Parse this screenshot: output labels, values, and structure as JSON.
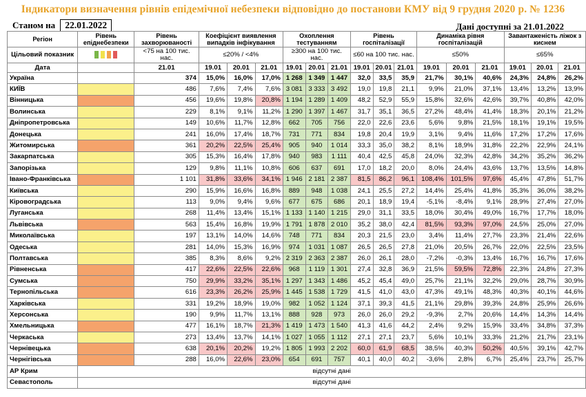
{
  "title": "Індикатори визначення рівнів епідемічної небезпеки відповідно до постанови КМУ від 9 грудня 2020 р. № 1236",
  "status_label": "Станом на",
  "status_date": "22.01.2022",
  "data_available_label": "Дані доступні за",
  "data_available_date": "21.01.2022",
  "headers": {
    "region": "Регіон",
    "level": "Рівень епіднебезпеки",
    "incidence": "Рівень захворюваності",
    "detection": "Коефіцієнт виявлення випадків інфікування",
    "testing": "Охоплення тестуванням",
    "hosp": "Рівень госпіталізації",
    "hosp_dyn": "Динаміка рівня госпіталізацій",
    "beds": "Завантаженість ліжок з киснем"
  },
  "target": {
    "label": "Цільовий показник",
    "incidence": "<75 на 100 тис. нас.",
    "detection": "≤20% / <4%",
    "testing": "≥300 на 100 тис. нас.",
    "hosp": "≤60 на 100 тис. нас.",
    "hosp_dyn": "≤50%",
    "beds": "≤65%"
  },
  "level_colors": [
    "#7ab648",
    "#f2e14c",
    "#f2a24c",
    "#e25a5a"
  ],
  "dates_label": "Дата",
  "dates": {
    "incidence": "21.01",
    "detection": [
      "19.01",
      "20.01",
      "21.01"
    ],
    "testing": [
      "19.01",
      "20.01",
      "21.01"
    ],
    "hosp": [
      "19.01",
      "20.01",
      "21.01"
    ],
    "hosp_dyn": [
      "19.01",
      "20.01",
      "21.01"
    ],
    "beds": [
      "19.01",
      "20.01",
      "21.01"
    ]
  },
  "ukraine": {
    "name": "Україна",
    "inc": "374",
    "det": [
      "15,0%",
      "16,0%",
      "17,0%"
    ],
    "test": [
      "1 268",
      "1 349",
      "1 447"
    ],
    "hosp": [
      "32,0",
      "33,5",
      "35,9"
    ],
    "dyn": [
      "21,7%",
      "30,1%",
      "40,6%"
    ],
    "beds": [
      "24,3%",
      "24,8%",
      "26,2%"
    ]
  },
  "regions": [
    {
      "name": "КИЇВ",
      "lvl": "yel",
      "inc": "486",
      "det": [
        "7,6%",
        "7,4%",
        "7,6%"
      ],
      "detc": [
        "",
        "",
        ""
      ],
      "test": [
        "3 081",
        "3 333",
        "3 492"
      ],
      "hosp": [
        "19,0",
        "19,8",
        "21,1"
      ],
      "hospc": [
        "",
        "",
        ""
      ],
      "dyn": [
        "9,9%",
        "21,0%",
        "37,1%"
      ],
      "dync": [
        "",
        "",
        ""
      ],
      "beds": [
        "13,4%",
        "13,2%",
        "13,9%"
      ]
    },
    {
      "name": "Вінницька",
      "lvl": "ora",
      "inc": "456",
      "det": [
        "19,6%",
        "19,8%",
        "20,8%"
      ],
      "detc": [
        "",
        "",
        "red"
      ],
      "test": [
        "1 194",
        "1 289",
        "1 409"
      ],
      "hosp": [
        "48,2",
        "52,9",
        "55,9"
      ],
      "hospc": [
        "",
        "",
        ""
      ],
      "dyn": [
        "15,8%",
        "32,6%",
        "42,6%"
      ],
      "dync": [
        "",
        "",
        ""
      ],
      "beds": [
        "39,7%",
        "40,8%",
        "42,0%"
      ]
    },
    {
      "name": "Волинська",
      "lvl": "yel",
      "inc": "229",
      "det": [
        "8,1%",
        "9,1%",
        "11,2%"
      ],
      "detc": [
        "",
        "",
        ""
      ],
      "test": [
        "1 290",
        "1 397",
        "1 467"
      ],
      "hosp": [
        "31,7",
        "35,1",
        "36,5"
      ],
      "hospc": [
        "",
        "",
        ""
      ],
      "dyn": [
        "27,2%",
        "48,4%",
        "41,4%"
      ],
      "dync": [
        "",
        "",
        ""
      ],
      "beds": [
        "18,3%",
        "20,1%",
        "21,2%"
      ]
    },
    {
      "name": "Дніпропетровська",
      "lvl": "yel",
      "inc": "149",
      "det": [
        "10,6%",
        "11,7%",
        "12,8%"
      ],
      "detc": [
        "",
        "",
        ""
      ],
      "test": [
        "662",
        "705",
        "756"
      ],
      "hosp": [
        "22,0",
        "22,6",
        "23,6"
      ],
      "hospc": [
        "",
        "",
        ""
      ],
      "dyn": [
        "5,6%",
        "9,8%",
        "21,5%"
      ],
      "dync": [
        "",
        "",
        ""
      ],
      "beds": [
        "18,1%",
        "19,1%",
        "19,5%"
      ]
    },
    {
      "name": "Донецька",
      "lvl": "yel",
      "inc": "241",
      "det": [
        "16,0%",
        "17,4%",
        "18,7%"
      ],
      "detc": [
        "",
        "",
        ""
      ],
      "test": [
        "731",
        "771",
        "834"
      ],
      "hosp": [
        "19,8",
        "20,4",
        "19,9"
      ],
      "hospc": [
        "",
        "",
        ""
      ],
      "dyn": [
        "3,1%",
        "9,4%",
        "11,6%"
      ],
      "dync": [
        "",
        "",
        ""
      ],
      "beds": [
        "17,2%",
        "17,2%",
        "17,6%"
      ]
    },
    {
      "name": "Житомирська",
      "lvl": "ora",
      "inc": "361",
      "det": [
        "20,2%",
        "22,5%",
        "25,4%"
      ],
      "detc": [
        "red",
        "red",
        "red"
      ],
      "test": [
        "905",
        "940",
        "1 014"
      ],
      "hosp": [
        "33,3",
        "35,0",
        "38,2"
      ],
      "hospc": [
        "",
        "",
        ""
      ],
      "dyn": [
        "8,1%",
        "18,9%",
        "31,8%"
      ],
      "dync": [
        "",
        "",
        ""
      ],
      "beds": [
        "22,2%",
        "22,9%",
        "24,1%"
      ]
    },
    {
      "name": "Закарпатська",
      "lvl": "yel",
      "inc": "305",
      "det": [
        "15,3%",
        "16,4%",
        "17,8%"
      ],
      "detc": [
        "",
        "",
        ""
      ],
      "test": [
        "940",
        "983",
        "1 111"
      ],
      "hosp": [
        "40,4",
        "42,5",
        "45,8"
      ],
      "hospc": [
        "",
        "",
        ""
      ],
      "dyn": [
        "24,0%",
        "32,3%",
        "42,8%"
      ],
      "dync": [
        "",
        "",
        ""
      ],
      "beds": [
        "34,2%",
        "35,2%",
        "36,2%"
      ]
    },
    {
      "name": "Запорізька",
      "lvl": "yel",
      "inc": "129",
      "det": [
        "9,8%",
        "11,1%",
        "10,8%"
      ],
      "detc": [
        "",
        "",
        ""
      ],
      "test": [
        "606",
        "637",
        "691"
      ],
      "hosp": [
        "17,0",
        "18,2",
        "20,0"
      ],
      "hospc": [
        "",
        "",
        ""
      ],
      "dyn": [
        "8,0%",
        "24,4%",
        "43,6%"
      ],
      "dync": [
        "",
        "",
        ""
      ],
      "beds": [
        "13,7%",
        "13,5%",
        "14,8%"
      ]
    },
    {
      "name": "Івано-Франківська",
      "lvl": "ora",
      "inc": "1 101",
      "det": [
        "31,8%",
        "33,6%",
        "34,1%"
      ],
      "detc": [
        "red",
        "red",
        "red"
      ],
      "test": [
        "1 946",
        "2 181",
        "2 387"
      ],
      "hosp": [
        "81,5",
        "86,2",
        "96,1"
      ],
      "hospc": [
        "red",
        "red",
        "red"
      ],
      "dyn": [
        "108,4%",
        "101,5%",
        "97,6%"
      ],
      "dync": [
        "red",
        "red",
        "red"
      ],
      "beds": [
        "45,4%",
        "47,8%",
        "51,7%"
      ]
    },
    {
      "name": "Київська",
      "lvl": "yel",
      "inc": "290",
      "det": [
        "15,9%",
        "16,6%",
        "16,8%"
      ],
      "detc": [
        "",
        "",
        ""
      ],
      "test": [
        "889",
        "948",
        "1 038"
      ],
      "hosp": [
        "24,1",
        "25,5",
        "27,2"
      ],
      "hospc": [
        "",
        "",
        ""
      ],
      "dyn": [
        "14,4%",
        "25,4%",
        "41,8%"
      ],
      "dync": [
        "",
        "",
        ""
      ],
      "beds": [
        "35,3%",
        "36,0%",
        "38,2%"
      ]
    },
    {
      "name": "Кіровоградська",
      "lvl": "yel",
      "inc": "113",
      "det": [
        "9,0%",
        "9,4%",
        "9,6%"
      ],
      "detc": [
        "",
        "",
        ""
      ],
      "test": [
        "677",
        "675",
        "686"
      ],
      "hosp": [
        "20,1",
        "18,9",
        "19,4"
      ],
      "hospc": [
        "",
        "",
        ""
      ],
      "dyn": [
        "-5,1%",
        "-8,4%",
        "9,1%"
      ],
      "dync": [
        "",
        "",
        ""
      ],
      "beds": [
        "28,9%",
        "27,4%",
        "27,0%"
      ]
    },
    {
      "name": "Луганська",
      "lvl": "yel",
      "inc": "268",
      "det": [
        "11,4%",
        "13,4%",
        "15,1%"
      ],
      "detc": [
        "",
        "",
        ""
      ],
      "test": [
        "1 133",
        "1 140",
        "1 215"
      ],
      "hosp": [
        "29,0",
        "31,1",
        "33,5"
      ],
      "hospc": [
        "",
        "",
        ""
      ],
      "dyn": [
        "18,0%",
        "30,4%",
        "49,0%"
      ],
      "dync": [
        "",
        "",
        ""
      ],
      "beds": [
        "16,7%",
        "17,7%",
        "18,0%"
      ]
    },
    {
      "name": "Львівська",
      "lvl": "ora",
      "inc": "563",
      "det": [
        "15,4%",
        "16,8%",
        "19,9%"
      ],
      "detc": [
        "",
        "",
        ""
      ],
      "test": [
        "1 791",
        "1 878",
        "2 010"
      ],
      "hosp": [
        "35,2",
        "38,0",
        "42,4"
      ],
      "hospc": [
        "",
        "",
        ""
      ],
      "dyn": [
        "81,5%",
        "93,3%",
        "97,0%"
      ],
      "dync": [
        "red",
        "red",
        "red"
      ],
      "beds": [
        "24,5%",
        "25,0%",
        "27,0%"
      ]
    },
    {
      "name": "Миколаївська",
      "lvl": "yel",
      "inc": "197",
      "det": [
        "13,1%",
        "14,0%",
        "14,6%"
      ],
      "detc": [
        "",
        "",
        ""
      ],
      "test": [
        "748",
        "771",
        "834"
      ],
      "hosp": [
        "20,3",
        "21,5",
        "23,0"
      ],
      "hospc": [
        "",
        "",
        ""
      ],
      "dyn": [
        "3,4%",
        "11,4%",
        "27,7%"
      ],
      "dync": [
        "",
        "",
        ""
      ],
      "beds": [
        "23,3%",
        "21,4%",
        "22,6%"
      ]
    },
    {
      "name": "Одеська",
      "lvl": "yel",
      "inc": "281",
      "det": [
        "14,0%",
        "15,3%",
        "16,9%"
      ],
      "detc": [
        "",
        "",
        ""
      ],
      "test": [
        "974",
        "1 031",
        "1 087"
      ],
      "hosp": [
        "26,5",
        "26,5",
        "27,8"
      ],
      "hospc": [
        "",
        "",
        ""
      ],
      "dyn": [
        "21,0%",
        "20,5%",
        "26,7%"
      ],
      "dync": [
        "",
        "",
        ""
      ],
      "beds": [
        "22,0%",
        "22,5%",
        "23,5%"
      ]
    },
    {
      "name": "Полтавська",
      "lvl": "yel",
      "inc": "385",
      "det": [
        "8,3%",
        "8,6%",
        "9,2%"
      ],
      "detc": [
        "",
        "",
        ""
      ],
      "test": [
        "2 319",
        "2 363",
        "2 387"
      ],
      "hosp": [
        "26,0",
        "26,1",
        "28,0"
      ],
      "hospc": [
        "",
        "",
        ""
      ],
      "dyn": [
        "-7,2%",
        "-0,3%",
        "13,4%"
      ],
      "dync": [
        "",
        "",
        ""
      ],
      "beds": [
        "16,7%",
        "16,7%",
        "17,6%"
      ]
    },
    {
      "name": "Рівненська",
      "lvl": "ora",
      "inc": "417",
      "det": [
        "22,6%",
        "22,5%",
        "22,6%"
      ],
      "detc": [
        "red",
        "red",
        "red"
      ],
      "test": [
        "968",
        "1 119",
        "1 301"
      ],
      "hosp": [
        "27,4",
        "32,8",
        "36,9"
      ],
      "hospc": [
        "",
        "",
        ""
      ],
      "dyn": [
        "21,5%",
        "59,5%",
        "72,8%"
      ],
      "dync": [
        "",
        "red",
        "red"
      ],
      "beds": [
        "22,3%",
        "24,8%",
        "27,3%"
      ]
    },
    {
      "name": "Сумська",
      "lvl": "ora",
      "inc": "750",
      "det": [
        "29,9%",
        "33,2%",
        "35,1%"
      ],
      "detc": [
        "red",
        "red",
        "red"
      ],
      "test": [
        "1 297",
        "1 343",
        "1 486"
      ],
      "hosp": [
        "45,2",
        "45,4",
        "49,0"
      ],
      "hospc": [
        "",
        "",
        ""
      ],
      "dyn": [
        "25,7%",
        "21,1%",
        "32,2%"
      ],
      "dync": [
        "",
        "",
        ""
      ],
      "beds": [
        "29,0%",
        "28,7%",
        "30,9%"
      ]
    },
    {
      "name": "Тернопільська",
      "lvl": "ora",
      "inc": "616",
      "det": [
        "23,3%",
        "26,2%",
        "25,9%"
      ],
      "detc": [
        "red",
        "red",
        "red"
      ],
      "test": [
        "1 445",
        "1 538",
        "1 729"
      ],
      "hosp": [
        "41,5",
        "41,0",
        "43,0"
      ],
      "hospc": [
        "",
        "",
        ""
      ],
      "dyn": [
        "47,3%",
        "49,1%",
        "48,3%"
      ],
      "dync": [
        "",
        "",
        ""
      ],
      "beds": [
        "40,3%",
        "40,1%",
        "44,6%"
      ]
    },
    {
      "name": "Харківська",
      "lvl": "yel",
      "inc": "331",
      "det": [
        "19,2%",
        "18,9%",
        "19,0%"
      ],
      "detc": [
        "",
        "",
        ""
      ],
      "test": [
        "982",
        "1 052",
        "1 124"
      ],
      "hosp": [
        "37,1",
        "39,3",
        "41,5"
      ],
      "hospc": [
        "",
        "",
        ""
      ],
      "dyn": [
        "21,1%",
        "29,8%",
        "39,3%"
      ],
      "dync": [
        "",
        "",
        ""
      ],
      "beds": [
        "24,8%",
        "25,9%",
        "26,6%"
      ]
    },
    {
      "name": "Херсонська",
      "lvl": "yel",
      "inc": "190",
      "det": [
        "9,9%",
        "11,7%",
        "13,1%"
      ],
      "detc": [
        "",
        "",
        ""
      ],
      "test": [
        "888",
        "928",
        "973"
      ],
      "hosp": [
        "26,0",
        "26,0",
        "29,2"
      ],
      "hospc": [
        "",
        "",
        ""
      ],
      "dyn": [
        "-9,3%",
        "2,7%",
        "20,6%"
      ],
      "dync": [
        "",
        "",
        ""
      ],
      "beds": [
        "14,4%",
        "14,3%",
        "14,4%"
      ]
    },
    {
      "name": "Хмельницька",
      "lvl": "ora",
      "inc": "477",
      "det": [
        "16,1%",
        "18,7%",
        "21,3%"
      ],
      "detc": [
        "",
        "",
        "red"
      ],
      "test": [
        "1 419",
        "1 473",
        "1 540"
      ],
      "hosp": [
        "41,3",
        "41,6",
        "44,2"
      ],
      "hospc": [
        "",
        "",
        ""
      ],
      "dyn": [
        "2,4%",
        "9,2%",
        "15,9%"
      ],
      "dync": [
        "",
        "",
        ""
      ],
      "beds": [
        "33,4%",
        "34,8%",
        "37,3%"
      ]
    },
    {
      "name": "Черкаська",
      "lvl": "yel",
      "inc": "273",
      "det": [
        "13,4%",
        "13,7%",
        "14,1%"
      ],
      "detc": [
        "",
        "",
        ""
      ],
      "test": [
        "1 027",
        "1 055",
        "1 112"
      ],
      "hosp": [
        "27,1",
        "27,1",
        "23,7"
      ],
      "hospc": [
        "",
        "",
        ""
      ],
      "dyn": [
        "5,6%",
        "10,1%",
        "33,3%"
      ],
      "dync": [
        "",
        "",
        ""
      ],
      "beds": [
        "21,2%",
        "21,7%",
        "23,1%"
      ]
    },
    {
      "name": "Чернівецька",
      "lvl": "ora",
      "inc": "638",
      "det": [
        "20,1%",
        "20,2%",
        "19,2%"
      ],
      "detc": [
        "red",
        "red",
        ""
      ],
      "test": [
        "1 805",
        "1 993",
        "2 202"
      ],
      "hosp": [
        "60,0",
        "61,9",
        "68,5"
      ],
      "hospc": [
        "red",
        "red",
        "red"
      ],
      "dyn": [
        "38,5%",
        "40,3%",
        "50,2%"
      ],
      "dync": [
        "",
        "",
        "red"
      ],
      "beds": [
        "40,5%",
        "39,1%",
        "42,7%"
      ]
    },
    {
      "name": "Чернігівська",
      "lvl": "ora",
      "inc": "288",
      "det": [
        "16,0%",
        "22,6%",
        "23,0%"
      ],
      "detc": [
        "",
        "red",
        "red"
      ],
      "test": [
        "654",
        "691",
        "757"
      ],
      "hosp": [
        "40,1",
        "40,0",
        "40,2"
      ],
      "hospc": [
        "",
        "",
        ""
      ],
      "dyn": [
        "-3,6%",
        "2,8%",
        "6,7%"
      ],
      "dync": [
        "",
        "",
        ""
      ],
      "beds": [
        "25,4%",
        "23,7%",
        "25,7%"
      ]
    }
  ],
  "no_data": [
    {
      "name": "АР Крим",
      "text": "відсутні дані"
    },
    {
      "name": "Севастополь",
      "text": "відсутні дані"
    }
  ]
}
